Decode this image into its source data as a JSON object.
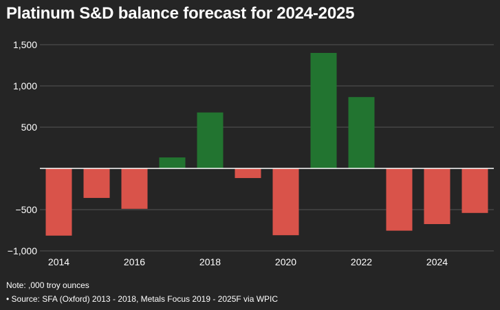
{
  "chart_data": {
    "type": "bar",
    "title": "Platinum S&D balance forecast for 2024-2025",
    "categories": [
      "2014",
      "2015",
      "2016",
      "2017",
      "2018",
      "2019",
      "2020",
      "2021",
      "2022",
      "2023",
      "2024",
      "2025"
    ],
    "values": [
      -815,
      -358,
      -490,
      133,
      678,
      -117,
      -810,
      1400,
      865,
      -755,
      -675,
      -540
    ],
    "x_tick_labels": [
      "2014",
      "2016",
      "2018",
      "2020",
      "2022",
      "2024"
    ],
    "y_ticks": [
      1500,
      1000,
      500,
      -500,
      -1000
    ],
    "y_tick_labels": [
      "1,500",
      "1,000",
      "500",
      "−500",
      "−1,000"
    ],
    "ylim": [
      -1000,
      1500
    ],
    "grid": true,
    "colors": {
      "positive": "#227430",
      "negative": "#d9534a",
      "background": "#252525",
      "grid": "#555555"
    },
    "xlabel": "",
    "ylabel": ""
  },
  "notes": {
    "note": "Note: ,000 troy ounces",
    "source": "• Source: SFA (Oxford) 2013 - 2018, Metals Focus 2019 - 2025F via WPIC"
  }
}
